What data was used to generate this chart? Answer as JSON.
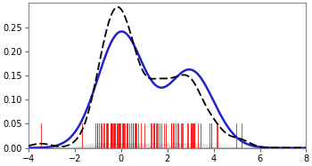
{
  "xlim": [
    -4,
    8
  ],
  "ylim": [
    0,
    0.3
  ],
  "yticks": [
    0,
    0.05,
    0.1,
    0.15,
    0.2,
    0.25
  ],
  "xticks": [
    -4,
    -2,
    0,
    2,
    4,
    6,
    8
  ],
  "true_density_color": "#2222cc",
  "kde_color": "#000000",
  "kernel_color": "#bbbbbb",
  "sample_color": "#ff0000",
  "bandwidth": 0.45,
  "sample_seed": 15,
  "n_samples": 100,
  "gaussian1_mean": 0,
  "gaussian1_std": 1.0,
  "gaussian2_mean": 3,
  "gaussian2_std": 1.0,
  "mix_weight": 0.6,
  "sample_line_height": 0.05,
  "background_color": "#ffffff",
  "fig_width": 3.5,
  "fig_height": 1.87,
  "dpi": 100
}
